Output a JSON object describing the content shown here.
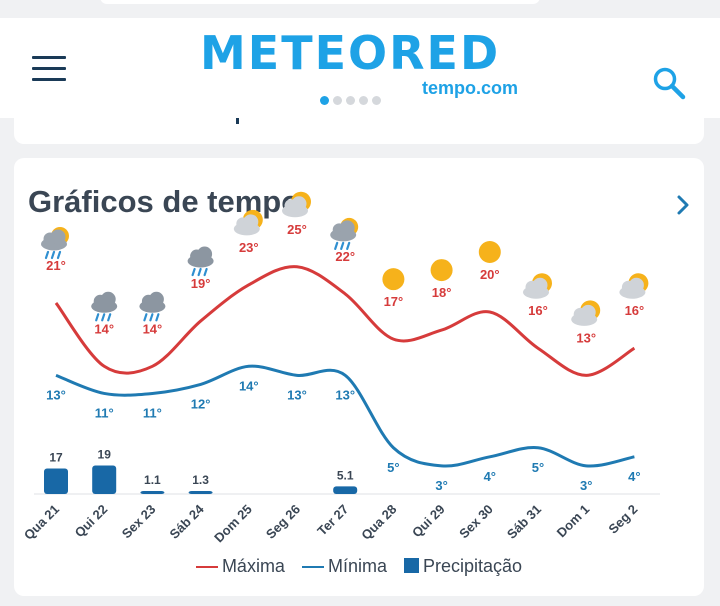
{
  "header": {
    "logo_text": "METEORED",
    "logo_sub": "tempo.com",
    "page_dots": 5,
    "active_dot": 0
  },
  "card": {
    "title": "Gráficos de tempo"
  },
  "legend": {
    "max_label": "Máxima",
    "min_label": "Mínima",
    "precip_label": "Precipitação"
  },
  "colors": {
    "brand": "#1ea2e6",
    "max_line": "#d63b3b",
    "min_line": "#1f7ab2",
    "precip_bar": "#1868a6",
    "text_dark": "#3a4654"
  },
  "chart_data": {
    "type": "line",
    "categories": [
      "Qua 21",
      "Qui 22",
      "Sex 23",
      "Sáb 24",
      "Dom 25",
      "Seg 26",
      "Ter 27",
      "Qua 28",
      "Qui 29",
      "Sex 30",
      "Sáb 31",
      "Dom 1",
      "Seg 2"
    ],
    "icons": [
      "sun-cloud-rain-icon",
      "rain-icon",
      "rain-icon",
      "rain-icon",
      "sun-cloud-icon",
      "sun-cloud-icon",
      "sun-cloud-rain-icon",
      "sun-icon",
      "sun-icon",
      "sun-icon",
      "sun-cloud-icon",
      "sun-cloud-icon",
      "sun-cloud-icon"
    ],
    "series": [
      {
        "name": "Máxima",
        "values": [
          21,
          14,
          14,
          19,
          23,
          25,
          22,
          17,
          18,
          20,
          16,
          13,
          16
        ],
        "labels": [
          "21°",
          "14°",
          "14°",
          "19°",
          "23°",
          "25°",
          "22°",
          "17°",
          "18°",
          "20°",
          "16°",
          "13°",
          "16°"
        ]
      },
      {
        "name": "Mínima",
        "values": [
          13,
          11,
          11,
          12,
          14,
          13,
          13,
          5,
          3,
          4,
          5,
          3,
          4
        ],
        "labels": [
          "13°",
          "11°",
          "11°",
          "12°",
          "14°",
          "13°",
          "13°",
          "5°",
          "3°",
          "4°",
          "5°",
          "3°",
          "4°"
        ]
      },
      {
        "name": "Precipitação",
        "values": [
          17,
          19,
          1.1,
          1.3,
          0,
          0,
          5.1,
          0,
          0,
          0,
          0,
          0,
          0
        ],
        "labels": [
          "17",
          "19",
          "1.1",
          "1.3",
          "",
          "",
          "5.1",
          "",
          "",
          "",
          "",
          "",
          ""
        ]
      }
    ]
  }
}
